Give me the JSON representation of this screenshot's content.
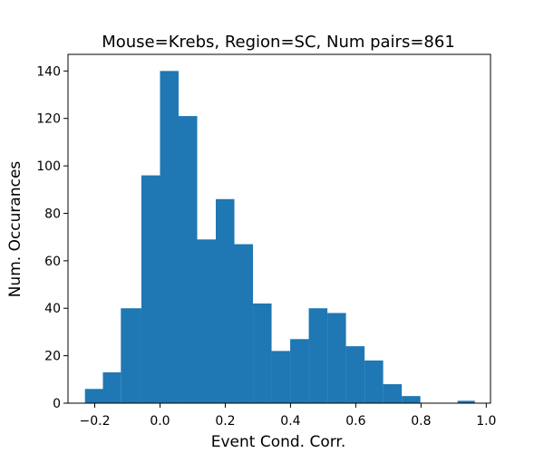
{
  "chart_data": {
    "type": "bar",
    "title": "Mouse=Krebs, Region=SC, Num pairs=861",
    "xlabel": "Event Cond. Corr.",
    "ylabel": "Num. Occurances",
    "xlim": [
      -0.282,
      1.013
    ],
    "ylim": [
      0,
      147
    ],
    "grid": false,
    "bar_color": "#1f77b4",
    "bins": [
      {
        "x0": -0.23,
        "x1": -0.175,
        "value": 6
      },
      {
        "x0": -0.175,
        "x1": -0.12,
        "value": 13
      },
      {
        "x0": -0.12,
        "x1": -0.057,
        "value": 40
      },
      {
        "x0": -0.057,
        "x1": 0.0,
        "value": 96
      },
      {
        "x0": 0.0,
        "x1": 0.057,
        "value": 140
      },
      {
        "x0": 0.057,
        "x1": 0.114,
        "value": 121
      },
      {
        "x0": 0.114,
        "x1": 0.171,
        "value": 69
      },
      {
        "x0": 0.171,
        "x1": 0.228,
        "value": 86
      },
      {
        "x0": 0.228,
        "x1": 0.285,
        "value": 67
      },
      {
        "x0": 0.285,
        "x1": 0.342,
        "value": 42
      },
      {
        "x0": 0.342,
        "x1": 0.399,
        "value": 22
      },
      {
        "x0": 0.399,
        "x1": 0.456,
        "value": 27
      },
      {
        "x0": 0.456,
        "x1": 0.513,
        "value": 40
      },
      {
        "x0": 0.513,
        "x1": 0.57,
        "value": 38
      },
      {
        "x0": 0.57,
        "x1": 0.627,
        "value": 24
      },
      {
        "x0": 0.627,
        "x1": 0.684,
        "value": 18
      },
      {
        "x0": 0.684,
        "x1": 0.741,
        "value": 8
      },
      {
        "x0": 0.741,
        "x1": 0.798,
        "value": 3
      },
      {
        "x0": 0.798,
        "x1": 0.855,
        "value": 0
      },
      {
        "x0": 0.855,
        "x1": 0.912,
        "value": 0
      },
      {
        "x0": 0.912,
        "x1": 0.965,
        "value": 1
      }
    ],
    "x_ticks": [
      {
        "value": -0.2,
        "label": "−0.2"
      },
      {
        "value": 0.0,
        "label": "0.0"
      },
      {
        "value": 0.2,
        "label": "0.2"
      },
      {
        "value": 0.4,
        "label": "0.4"
      },
      {
        "value": 0.6,
        "label": "0.6"
      },
      {
        "value": 0.8,
        "label": "0.8"
      },
      {
        "value": 1.0,
        "label": "1.0"
      }
    ],
    "y_ticks": [
      {
        "value": 0,
        "label": "0"
      },
      {
        "value": 20,
        "label": "20"
      },
      {
        "value": 40,
        "label": "40"
      },
      {
        "value": 60,
        "label": "60"
      },
      {
        "value": 80,
        "label": "80"
      },
      {
        "value": 100,
        "label": "100"
      },
      {
        "value": 120,
        "label": "120"
      },
      {
        "value": 140,
        "label": "140"
      }
    ]
  }
}
